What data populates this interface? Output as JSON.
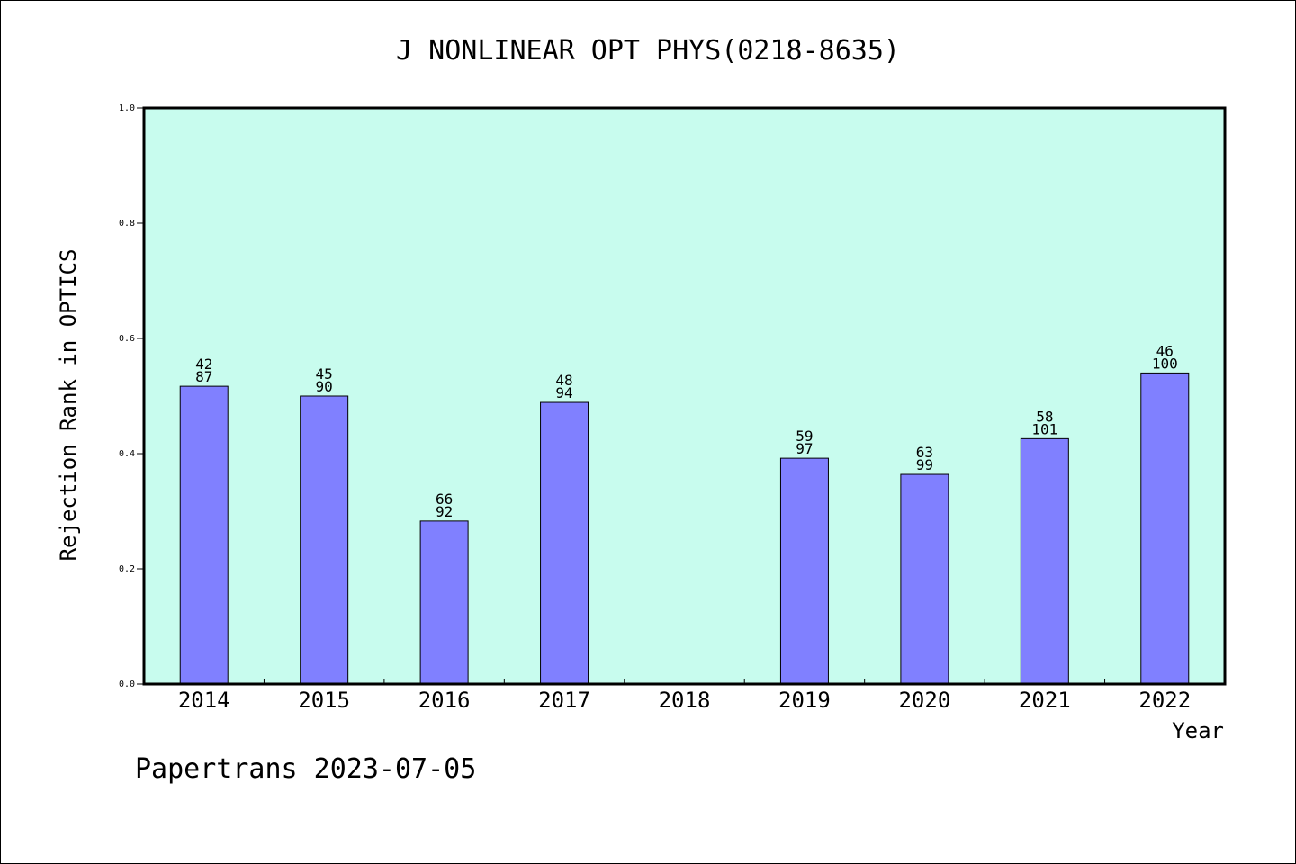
{
  "chart_data": {
    "type": "bar",
    "title": "J NONLINEAR OPT PHYS(0218-8635)",
    "xlabel": "Year",
    "ylabel": "Rejection Rank in OPTICS",
    "footer": "Papertrans 2023-07-05",
    "ylim": [
      0,
      1.0
    ],
    "yticks": [
      "0.0",
      "0.2",
      "0.4",
      "0.6",
      "0.8",
      "1.0"
    ],
    "grid": false,
    "categories": [
      "2014",
      "2015",
      "2016",
      "2017",
      "2018",
      "2019",
      "2020",
      "2021",
      "2022"
    ],
    "values": [
      0.517,
      0.5,
      0.283,
      0.489,
      null,
      0.392,
      0.364,
      0.426,
      0.54
    ],
    "labels_top": [
      "42",
      "45",
      "66",
      "48",
      "",
      "59",
      "63",
      "58",
      "46"
    ],
    "labels_bottom": [
      "87",
      "90",
      "92",
      "94",
      "",
      "97",
      "99",
      "101",
      "100"
    ],
    "colors": {
      "plot_background": "#c8fcee",
      "bar_fill": "#8080ff",
      "bar_stroke": "#000000"
    }
  }
}
